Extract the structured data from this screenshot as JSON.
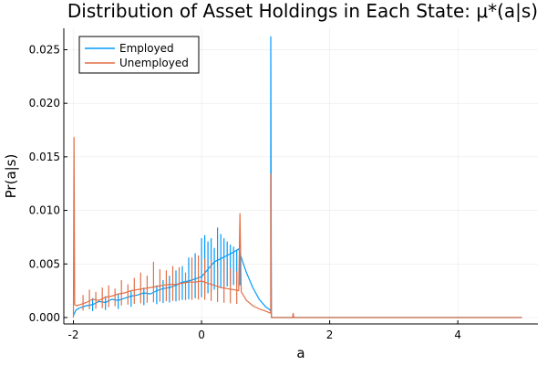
{
  "chart_data": {
    "type": "line",
    "title": "Distribution of Asset Holdings in Each State: μ*(a|s)",
    "xlabel": "a",
    "ylabel": "Pr(a|s)",
    "xlim": [
      -2.15,
      5.25
    ],
    "ylim": [
      -0.0006,
      0.027
    ],
    "x_ticks": [
      -2,
      0,
      2,
      4
    ],
    "x_tick_labels": [
      "-2",
      "0",
      "2",
      "4"
    ],
    "y_ticks": [
      0.0,
      0.005,
      0.01,
      0.015,
      0.02,
      0.025
    ],
    "y_tick_labels": [
      "0.000",
      "0.005",
      "0.010",
      "0.015",
      "0.020",
      "0.025"
    ],
    "grid": true,
    "legend_position": "top-left",
    "series": [
      {
        "name": "Employed",
        "color": "#009af9",
        "x": [
          -2.0,
          -1.96,
          -1.9,
          -1.8,
          -1.7,
          -1.6,
          -1.5,
          -1.4,
          -1.3,
          -1.2,
          -1.1,
          -1.0,
          -0.9,
          -0.8,
          -0.7,
          -0.6,
          -0.5,
          -0.4,
          -0.3,
          -0.2,
          -0.1,
          0.0,
          0.1,
          0.2,
          0.3,
          0.4,
          0.5,
          0.58,
          0.62,
          0.7,
          0.8,
          0.9,
          1.0,
          1.05,
          1.08,
          1.08,
          1.09,
          1.5,
          2.0,
          3.0,
          4.0,
          5.0
        ],
        "y": [
          0.0002,
          0.0007,
          0.0009,
          0.0011,
          0.0012,
          0.0015,
          0.0014,
          0.0017,
          0.0016,
          0.0018,
          0.002,
          0.0021,
          0.0023,
          0.0022,
          0.0025,
          0.0027,
          0.0028,
          0.003,
          0.0033,
          0.0034,
          0.0036,
          0.0038,
          0.0045,
          0.0052,
          0.0055,
          0.0058,
          0.0061,
          0.0064,
          0.0056,
          0.0042,
          0.0028,
          0.0017,
          0.001,
          0.0008,
          0.0006,
          0.0262,
          0.0,
          0.0,
          0.0,
          0.0,
          0.0,
          0.0
        ],
        "peaks_x": [
          -1.7,
          -1.5,
          -1.3,
          -1.1,
          -0.9,
          -0.7,
          -0.6,
          -0.5,
          -0.4,
          -0.3,
          -0.2,
          -0.1,
          0.0,
          0.05,
          0.1,
          0.15,
          0.2,
          0.25,
          0.3,
          0.35,
          0.4,
          0.45,
          0.5,
          0.55,
          0.6
        ],
        "peaks_y": [
          0.0018,
          0.002,
          0.0022,
          0.0025,
          0.0028,
          0.003,
          0.0035,
          0.0039,
          0.0044,
          0.0048,
          0.0056,
          0.006,
          0.0074,
          0.0077,
          0.0071,
          0.0074,
          0.0065,
          0.0084,
          0.0078,
          0.0074,
          0.0071,
          0.0068,
          0.0066,
          0.0063,
          0.0061
        ]
      },
      {
        "name": "Unemployed",
        "color": "#e26f46",
        "x": [
          -2.0,
          -1.99,
          -1.98,
          -1.95,
          -1.9,
          -1.8,
          -1.7,
          -1.6,
          -1.5,
          -1.4,
          -1.3,
          -1.2,
          -1.1,
          -1.0,
          -0.9,
          -0.8,
          -0.7,
          -0.6,
          -0.5,
          -0.4,
          -0.3,
          -0.2,
          -0.1,
          0.0,
          0.1,
          0.2,
          0.3,
          0.4,
          0.5,
          0.58,
          0.6,
          0.62,
          0.7,
          0.8,
          0.9,
          1.0,
          1.08,
          1.08,
          1.09,
          1.42,
          1.43,
          1.44,
          2.0,
          3.0,
          4.0,
          5.0
        ],
        "y": [
          0.0,
          0.0168,
          0.0012,
          0.0011,
          0.0012,
          0.0014,
          0.0017,
          0.0016,
          0.0019,
          0.002,
          0.0022,
          0.0023,
          0.0025,
          0.0026,
          0.0027,
          0.0028,
          0.0029,
          0.003,
          0.0031,
          0.0031,
          0.0032,
          0.0033,
          0.0033,
          0.0034,
          0.0032,
          0.003,
          0.0028,
          0.0027,
          0.0026,
          0.0025,
          0.0097,
          0.0024,
          0.0016,
          0.0011,
          0.0008,
          0.0006,
          0.0004,
          0.0134,
          0.0,
          0.0,
          0.0004,
          0.0,
          0.0,
          0.0,
          0.0,
          0.0
        ],
        "peaks_x": [
          -1.85,
          -1.75,
          -1.65,
          -1.55,
          -1.45,
          -1.35,
          -1.25,
          -1.15,
          -1.05,
          -0.95,
          -0.85,
          -0.75,
          -0.65,
          -0.55,
          -0.45,
          -0.35,
          -0.25,
          -0.15,
          -0.05,
          0.05,
          0.15,
          0.25,
          0.35,
          0.45,
          0.55
        ],
        "peaks_y": [
          0.0021,
          0.0026,
          0.0024,
          0.0028,
          0.003,
          0.0027,
          0.0035,
          0.0031,
          0.0037,
          0.0042,
          0.0039,
          0.0052,
          0.0045,
          0.0044,
          0.0048,
          0.0047,
          0.0042,
          0.0056,
          0.0058,
          0.0055,
          0.0053,
          0.0047,
          0.0054,
          0.0046,
          0.0043
        ]
      }
    ]
  }
}
